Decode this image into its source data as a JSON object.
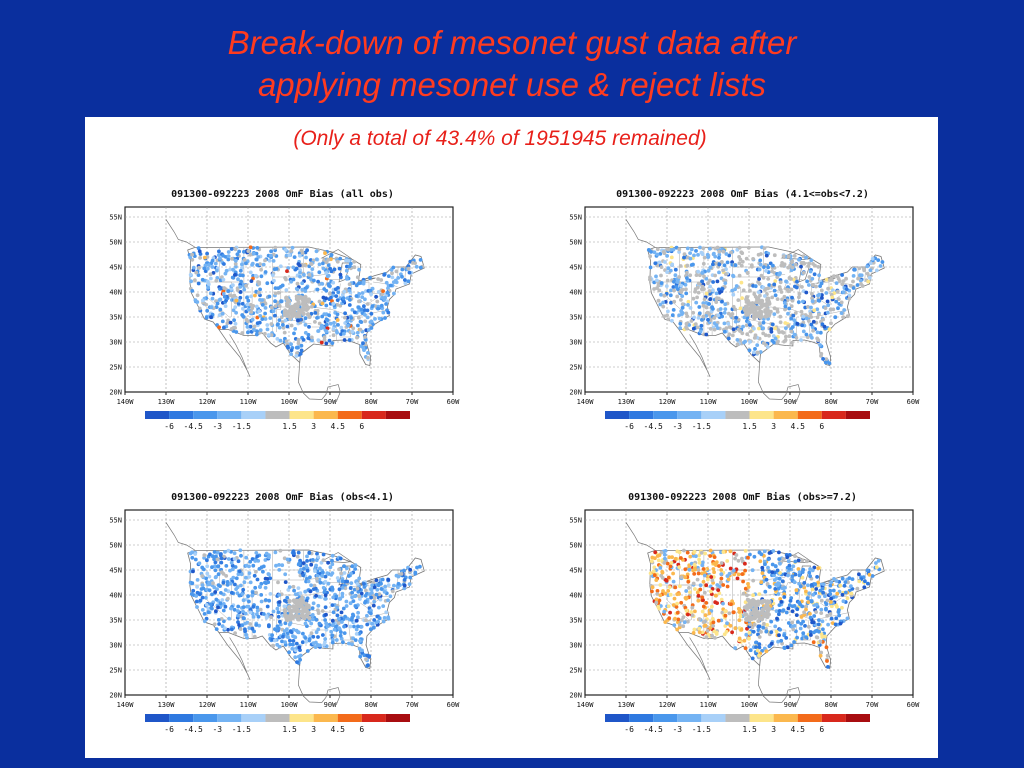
{
  "slide": {
    "title_line1": "Break-down of mesonet gust data after",
    "title_line2": "applying mesonet use & reject lists",
    "subtitle": "(Only a total of 43.4% of 1951945 remained)"
  },
  "colors": {
    "background": "#0a2f9e",
    "title": "#ff3b1f",
    "colorbar": [
      "#1f56c8",
      "#2f79e0",
      "#4a97ec",
      "#74b3f3",
      "#a8d0f8",
      "#bdbdbd",
      "#fde58a",
      "#fbb84e",
      "#f36b1a",
      "#d8281c",
      "#a80d10"
    ]
  },
  "colorbar_labels": [
    "-6",
    "-4.5",
    "-3",
    "-1.5",
    "1.5",
    "3",
    "4.5",
    "6"
  ],
  "lat_labels": [
    "55N",
    "50N",
    "45N",
    "40N",
    "35N",
    "30N",
    "25N",
    "20N"
  ],
  "lon_labels": [
    "140W",
    "130W",
    "120W",
    "110W",
    "100W",
    "90W",
    "80W",
    "70W",
    "60W"
  ],
  "maps": [
    {
      "title": "091300-092223 2008 OmF Bias (all obs)",
      "mode": "all"
    },
    {
      "title": "091300-092223 2008 OmF Bias (4.1<=obs<7.2)",
      "mode": "mid"
    },
    {
      "title": "091300-092223 2008 OmF Bias (obs<4.1)",
      "mode": "low"
    },
    {
      "title": "091300-092223 2008 OmF Bias (obs>=7.2)",
      "mode": "high"
    }
  ]
}
